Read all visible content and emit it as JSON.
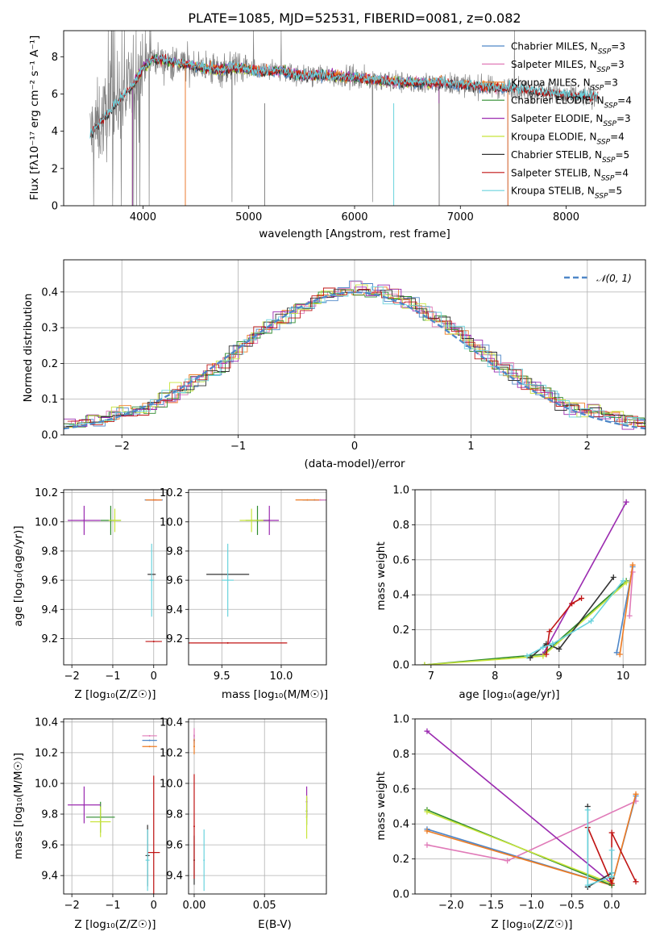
{
  "colors": {
    "Chabrier MILES": "#4f87c8",
    "Salpeter MILES": "#e07ab8",
    "Kroupa MILES": "#ee7b22",
    "Chabrier ELODIE": "#2e8b2e",
    "Salpeter ELODIE": "#9b2bb0",
    "Kroupa ELODIE": "#c8e43a",
    "Chabrier STELIB": "#333333",
    "Salpeter STELIB": "#c01414",
    "Kroupa STELIB": "#6ad3dd",
    "data": "#808080",
    "normal": "#4f87c8"
  },
  "chart_data": [
    {
      "type": "line",
      "title": "PLATE=1085, MJD=52531, FIBERID=0081, z=0.082",
      "xlabel": "wavelength [Angstrom, rest frame]",
      "ylabel": "Flux [fλ10⁻¹⁷ erg cm⁻² s⁻¹ A⁻¹]",
      "xlim": [
        3250,
        8750
      ],
      "ylim": [
        0,
        9.4
      ],
      "xticks": [
        4000,
        5000,
        6000,
        7000,
        8000
      ],
      "yticks": [
        0,
        2,
        4,
        6,
        8
      ],
      "grid": false,
      "legend_position": "top-right",
      "series": [
        {
          "name": "Chabrier MILES, N_SSP=3",
          "color_key": "Chabrier MILES"
        },
        {
          "name": "Salpeter MILES, N_SSP=3",
          "color_key": "Salpeter MILES"
        },
        {
          "name": "Kroupa MILES, N_SSP=3",
          "color_key": "Kroupa MILES"
        },
        {
          "name": "Chabrier ELODIE, N_SSP=4",
          "color_key": "Chabrier ELODIE"
        },
        {
          "name": "Salpeter ELODIE, N_SSP=3",
          "color_key": "Salpeter ELODIE"
        },
        {
          "name": "Kroupa ELODIE, N_SSP=4",
          "color_key": "Kroupa ELODIE"
        },
        {
          "name": "Chabrier STELIB, N_SSP=5",
          "color_key": "Chabrier STELIB"
        },
        {
          "name": "Salpeter STELIB, N_SSP=4",
          "color_key": "Salpeter STELIB"
        },
        {
          "name": "Kroupa STELIB, N_SSP=5",
          "color_key": "Kroupa STELIB"
        }
      ],
      "data_range": [
        3500,
        8300
      ],
      "model_start": {
        "MILES": 4400,
        "ELODIE": 3900,
        "STELIB": 3500
      },
      "model_end": {
        "MILES": 7450,
        "ELODIE": 6800,
        "STELIB": 8300
      },
      "continuum": [
        [
          3500,
          3.8
        ],
        [
          3600,
          4.5
        ],
        [
          3700,
          5.2
        ],
        [
          3800,
          5.8
        ],
        [
          3900,
          6.4
        ],
        [
          4000,
          7.4
        ],
        [
          4100,
          7.9
        ],
        [
          4300,
          7.7
        ],
        [
          4500,
          7.5
        ],
        [
          4700,
          7.3
        ],
        [
          4900,
          7.4
        ],
        [
          5100,
          7.2
        ],
        [
          5300,
          7.25
        ],
        [
          5500,
          7.0
        ],
        [
          5700,
          7.0
        ],
        [
          6000,
          6.9
        ],
        [
          6300,
          6.7
        ],
        [
          6500,
          6.6
        ],
        [
          6800,
          6.6
        ],
        [
          7000,
          6.5
        ],
        [
          7200,
          6.4
        ],
        [
          7500,
          6.3
        ],
        [
          7800,
          6.1
        ],
        [
          8000,
          5.9
        ],
        [
          8300,
          5.9
        ]
      ]
    },
    {
      "type": "line",
      "xlabel": "(data-model)/error",
      "ylabel": "Normed distribution",
      "xlim": [
        -2.5,
        2.5
      ],
      "ylim": [
        0,
        0.49
      ],
      "xticks": [
        -2,
        -1,
        0,
        1,
        2
      ],
      "yticks": [
        0.0,
        0.1,
        0.2,
        0.3,
        0.4
      ],
      "grid": true,
      "legend_position": "top-right",
      "legend": "𝒩(0, 1)",
      "bin_width": 0.1
    },
    {
      "type": "scatter",
      "xlabel": "Z [log₁₀(Z/Z☉)]",
      "ylabel": "age  [log₁₀(age/yr)]",
      "xlim": [
        -2.2,
        0.32
      ],
      "ylim": [
        9.02,
        10.22
      ],
      "xticks": [
        -2,
        -1,
        0
      ],
      "yticks": [
        9.2,
        9.4,
        9.6,
        9.8,
        10.0,
        10.2
      ],
      "grid": true,
      "points": [
        {
          "model": "Chabrier MILES",
          "x": 0.0,
          "xerr": 0.22,
          "y": 10.15,
          "yerr": 0.0
        },
        {
          "model": "Salpeter MILES",
          "x": 0.05,
          "xerr": 0.15,
          "y": 10.15,
          "yerr": 0.0
        },
        {
          "model": "Kroupa MILES",
          "x": 0.0,
          "xerr": 0.2,
          "y": 10.15,
          "yerr": 0.0
        },
        {
          "model": "Chabrier ELODIE",
          "x": -1.05,
          "xerr": 0.25,
          "y": 10.01,
          "yerr": 0.1
        },
        {
          "model": "Salpeter ELODIE",
          "x": -1.7,
          "xerr": 0.4,
          "y": 10.01,
          "yerr": 0.1
        },
        {
          "model": "Kroupa ELODIE",
          "x": -0.95,
          "xerr": 0.15,
          "y": 10.01,
          "yerr": 0.08
        },
        {
          "model": "Chabrier STELIB",
          "x": -0.05,
          "xerr": 0.1,
          "y": 9.64,
          "yerr": 0.0
        },
        {
          "model": "Salpeter STELIB",
          "x": 0.0,
          "xerr": 0.2,
          "y": 9.18,
          "yerr": 0.0
        },
        {
          "model": "Kroupa STELIB",
          "x": -0.05,
          "xerr": 0.05,
          "y": 9.6,
          "yerr": 0.25
        }
      ]
    },
    {
      "type": "scatter",
      "xlabel": "mass [log₁₀(M/M☉)]",
      "xlim": [
        9.22,
        10.38
      ],
      "ylim": [
        9.02,
        10.22
      ],
      "xticks": [
        9.5,
        10.0
      ],
      "yticks": [
        9.2,
        9.4,
        9.6,
        9.8,
        10.0,
        10.2
      ],
      "grid": true,
      "points": [
        {
          "model": "Chabrier MILES",
          "x": 10.28,
          "xerr": 0.1,
          "y": 10.15,
          "yerr": 0.0
        },
        {
          "model": "Salpeter MILES",
          "x": 10.33,
          "xerr": 0.05,
          "y": 10.15,
          "yerr": 0.0
        },
        {
          "model": "Kroupa MILES",
          "x": 10.22,
          "xerr": 0.1,
          "y": 10.15,
          "yerr": 0.0
        },
        {
          "model": "Chabrier ELODIE",
          "x": 9.8,
          "xerr": 0.1,
          "y": 10.01,
          "yerr": 0.1
        },
        {
          "model": "Salpeter ELODIE",
          "x": 9.9,
          "xerr": 0.08,
          "y": 10.01,
          "yerr": 0.1
        },
        {
          "model": "Kroupa ELODIE",
          "x": 9.75,
          "xerr": 0.1,
          "y": 10.01,
          "yerr": 0.08
        },
        {
          "model": "Chabrier STELIB",
          "x": 9.55,
          "xerr": 0.18,
          "y": 9.64,
          "yerr": 0.0
        },
        {
          "model": "Salpeter STELIB",
          "x": 9.55,
          "xerr": 0.5,
          "y": 9.17,
          "yerr": 0.0
        },
        {
          "model": "Kroupa STELIB",
          "x": 9.55,
          "xerr": 0.05,
          "y": 9.6,
          "yerr": 0.25
        }
      ]
    },
    {
      "type": "line",
      "xlabel": "age  [log₁₀(age/yr)]",
      "ylabel": "mass weight",
      "xlim": [
        6.75,
        10.35
      ],
      "ylim": [
        0,
        1.0
      ],
      "xticks": [
        7,
        8,
        9,
        10
      ],
      "yticks": [
        0.0,
        0.2,
        0.4,
        0.6,
        0.8,
        1.0
      ],
      "grid": true,
      "series": [
        {
          "model": "Chabrier MILES",
          "x": [
            9.9,
            10.15
          ],
          "y": [
            0.07,
            0.56
          ]
        },
        {
          "model": "Salpeter MILES",
          "x": [
            10.1,
            10.15
          ],
          "y": [
            0.28,
            0.53
          ]
        },
        {
          "model": "Kroupa MILES",
          "x": [
            9.95,
            10.15
          ],
          "y": [
            0.06,
            0.57
          ]
        },
        {
          "model": "Chabrier ELODIE",
          "x": [
            6.9,
            8.75,
            10.05
          ],
          "y": [
            0.0,
            0.06,
            0.48
          ]
        },
        {
          "model": "Salpeter ELODIE",
          "x": [
            8.75,
            10.05
          ],
          "y": [
            0.06,
            0.93
          ]
        },
        {
          "model": "Kroupa ELODIE",
          "x": [
            6.9,
            8.75,
            10.05
          ],
          "y": [
            0.0,
            0.05,
            0.47
          ]
        },
        {
          "model": "Chabrier STELIB",
          "x": [
            8.55,
            8.8,
            9.0,
            9.85
          ],
          "y": [
            0.04,
            0.12,
            0.09,
            0.5
          ]
        },
        {
          "model": "Salpeter STELIB",
          "x": [
            8.8,
            8.85,
            9.2,
            9.35
          ],
          "y": [
            0.06,
            0.19,
            0.35,
            0.38
          ]
        },
        {
          "model": "Kroupa STELIB",
          "x": [
            8.5,
            8.75,
            8.9,
            9.5,
            10.0
          ],
          "y": [
            0.05,
            0.1,
            0.12,
            0.25,
            0.48
          ]
        }
      ]
    },
    {
      "type": "scatter",
      "xlabel": "Z [log₁₀(Z/Z☉)]",
      "ylabel": "mass [log₁₀(M/M☉)]",
      "xlim": [
        -2.2,
        0.32
      ],
      "ylim": [
        9.28,
        10.42
      ],
      "xticks": [
        -2,
        -1,
        0
      ],
      "yticks": [
        9.4,
        9.6,
        9.8,
        10.0,
        10.2,
        10.4
      ],
      "grid": true,
      "points": [
        {
          "model": "Chabrier MILES",
          "x": -0.1,
          "xerr": 0.18,
          "y": 10.28,
          "yerr": 0.0
        },
        {
          "model": "Salpeter MILES",
          "x": -0.1,
          "xerr": 0.18,
          "y": 10.31,
          "yerr": 0.0
        },
        {
          "model": "Kroupa MILES",
          "x": -0.1,
          "xerr": 0.18,
          "y": 10.24,
          "yerr": 0.0
        },
        {
          "model": "Chabrier ELODIE",
          "x": -1.3,
          "xerr": 0.35,
          "y": 9.78,
          "yerr": 0.1
        },
        {
          "model": "Salpeter ELODIE",
          "x": -1.7,
          "xerr": 0.4,
          "y": 9.86,
          "yerr": 0.12
        },
        {
          "model": "Kroupa ELODIE",
          "x": -1.3,
          "xerr": 0.25,
          "y": 9.75,
          "yerr": 0.1
        },
        {
          "model": "Chabrier STELIB",
          "x": -0.15,
          "xerr": 0.05,
          "y": 9.53,
          "yerr": 0.2
        },
        {
          "model": "Salpeter STELIB",
          "x": 0.0,
          "xerr": 0.15,
          "y": 9.55,
          "yerr": 0.5
        },
        {
          "model": "Kroupa STELIB",
          "x": -0.15,
          "xerr": 0.05,
          "y": 9.5,
          "yerr": 0.2
        }
      ]
    },
    {
      "type": "scatter",
      "xlabel": "E(B-V)",
      "xlim": [
        -0.004,
        0.094
      ],
      "ylim": [
        9.28,
        10.42
      ],
      "xticks": [
        0.0,
        0.05
      ],
      "yticks": [
        9.4,
        9.6,
        9.8,
        10.0,
        10.2,
        10.4
      ],
      "grid": true,
      "points": [
        {
          "model": "Chabrier MILES",
          "x": 0.0,
          "xerr": 0.0,
          "y": 10.28,
          "yerr": 0.04
        },
        {
          "model": "Salpeter MILES",
          "x": 0.0,
          "xerr": 0.0,
          "y": 10.31,
          "yerr": 0.05
        },
        {
          "model": "Kroupa MILES",
          "x": 0.0,
          "xerr": 0.0,
          "y": 10.24,
          "yerr": 0.05
        },
        {
          "model": "Chabrier ELODIE",
          "x": 0.08,
          "xerr": 0.0,
          "y": 9.82,
          "yerr": 0.09
        },
        {
          "model": "Salpeter ELODIE",
          "x": 0.08,
          "xerr": 0.0,
          "y": 9.88,
          "yerr": 0.1
        },
        {
          "model": "Kroupa ELODIE",
          "x": 0.08,
          "xerr": 0.0,
          "y": 9.78,
          "yerr": 0.14
        },
        {
          "model": "Chabrier STELIB",
          "x": 0.0,
          "xerr": 0.0,
          "y": 9.5,
          "yerr": 0.16
        },
        {
          "model": "Salpeter STELIB",
          "x": 0.0,
          "xerr": 0.0,
          "y": 9.72,
          "yerr": 0.34
        },
        {
          "model": "Kroupa STELIB",
          "x": 0.007,
          "xerr": 0.0,
          "y": 9.5,
          "yerr": 0.2
        }
      ]
    },
    {
      "type": "line",
      "xlabel": "Z [log₁₀(Z/Z☉)]",
      "ylabel": "mass weight",
      "xlim": [
        -2.45,
        0.42
      ],
      "ylim": [
        0,
        1.0
      ],
      "xticks": [
        -2.0,
        -1.5,
        -1.0,
        -0.5,
        0.0
      ],
      "yticks": [
        0.0,
        0.2,
        0.4,
        0.6,
        0.8,
        1.0
      ],
      "grid": true,
      "series": [
        {
          "model": "Chabrier MILES",
          "x": [
            -2.3,
            0.0,
            0.3
          ],
          "y": [
            0.37,
            0.05,
            0.56
          ]
        },
        {
          "model": "Salpeter MILES",
          "x": [
            -2.3,
            -1.3,
            0.3
          ],
          "y": [
            0.28,
            0.19,
            0.53
          ]
        },
        {
          "model": "Kroupa MILES",
          "x": [
            -2.3,
            0.0,
            0.3
          ],
          "y": [
            0.36,
            0.05,
            0.57
          ]
        },
        {
          "model": "Chabrier ELODIE",
          "x": [
            -2.3,
            0.0
          ],
          "y": [
            0.48,
            0.05
          ]
        },
        {
          "model": "Salpeter ELODIE",
          "x": [
            -2.3,
            0.0
          ],
          "y": [
            0.93,
            0.06
          ]
        },
        {
          "model": "Kroupa ELODIE",
          "x": [
            -2.3,
            0.0
          ],
          "y": [
            0.47,
            0.06
          ]
        },
        {
          "model": "Chabrier STELIB",
          "x": [
            -0.3,
            -0.3,
            0.0,
            0.0
          ],
          "y": [
            0.5,
            0.04,
            0.12,
            0.09
          ]
        },
        {
          "model": "Salpeter STELIB",
          "x": [
            -0.3,
            0.0,
            0.0,
            0.3
          ],
          "y": [
            0.38,
            0.06,
            0.35,
            0.07
          ]
        },
        {
          "model": "Kroupa STELIB",
          "x": [
            -0.3,
            -0.3,
            0.0,
            0.0,
            0.0
          ],
          "y": [
            0.48,
            0.05,
            0.1,
            0.25,
            0.12
          ]
        }
      ]
    }
  ]
}
